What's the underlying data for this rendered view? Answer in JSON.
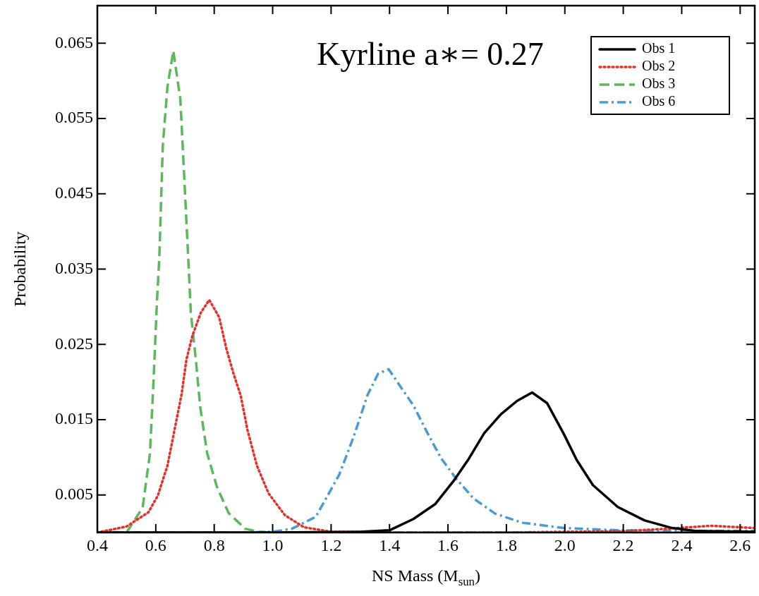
{
  "chart_data": {
    "type": "line",
    "title": "Kyrline a∗= 0.27",
    "xlabel": "NS Mass (M$_{sun}$)",
    "ylabel": "Probability",
    "xlim": [
      0.4,
      2.65
    ],
    "ylim": [
      0,
      0.07
    ],
    "xticks": [
      0.4,
      0.6,
      0.8,
      {
        "value": 1,
        "label": "1.0"
      },
      1.2,
      1.4,
      1.6,
      1.8,
      {
        "value": 2,
        "label": "2.0"
      },
      2.2,
      2.4,
      2.6
    ],
    "yticks": [
      0.005,
      0.015,
      0.025,
      0.035,
      0.045,
      0.055,
      0.065
    ],
    "grid": false,
    "legend": "top right",
    "marker": "none",
    "series": [
      {
        "name": "Obs 1",
        "color": "#000000",
        "line_style": "solid",
        "x": [
          0.4,
          1.0,
          1.3,
          1.4,
          1.482,
          1.557,
          1.622,
          1.668,
          1.724,
          1.781,
          1.837,
          1.888,
          1.939,
          1.995,
          2.041,
          2.096,
          2.181,
          2.273,
          2.367,
          2.45,
          2.65
        ],
        "values": [
          0,
          0,
          0.0001,
          0.0003,
          0.0018,
          0.0038,
          0.007,
          0.0096,
          0.0132,
          0.0157,
          0.0175,
          0.0186,
          0.0172,
          0.0132,
          0.0096,
          0.0063,
          0.0034,
          0.0016,
          0.0006,
          0.0002,
          0.0001
        ]
      },
      {
        "name": "Obs 2",
        "color": "#e8302a",
        "line_style": "dotted",
        "x": [
          0.4,
          0.5,
          0.575,
          0.607,
          0.64,
          0.664,
          0.688,
          0.705,
          0.725,
          0.754,
          0.783,
          0.817,
          0.841,
          0.866,
          0.89,
          0.914,
          0.946,
          0.986,
          1.042,
          1.107,
          1.2,
          1.4,
          1.8,
          2.2,
          2.35,
          2.5,
          2.65
        ],
        "values": [
          0,
          0.0008,
          0.0027,
          0.0049,
          0.0089,
          0.0136,
          0.0183,
          0.023,
          0.0261,
          0.0292,
          0.0309,
          0.0286,
          0.0245,
          0.0211,
          0.0183,
          0.0136,
          0.0089,
          0.0052,
          0.0023,
          0.0007,
          0.0001,
          0,
          0,
          0.0002,
          0.0005,
          0.0009,
          0.0006
        ]
      },
      {
        "name": "Obs 3",
        "color": "#5cb85c",
        "line_style": "dashed",
        "x": [
          0.4,
          0.5,
          0.555,
          0.58,
          0.592,
          0.604,
          0.612,
          0.624,
          0.64,
          0.66,
          0.684,
          0.696,
          0.708,
          0.72,
          0.737,
          0.752,
          0.776,
          0.809,
          0.849,
          0.906,
          0.95,
          1.0,
          2.65
        ],
        "values": [
          0,
          0,
          0.0033,
          0.0105,
          0.0199,
          0.0307,
          0.0364,
          0.0514,
          0.0592,
          0.064,
          0.0576,
          0.0483,
          0.0389,
          0.0292,
          0.023,
          0.0167,
          0.0105,
          0.0061,
          0.0026,
          0.0005,
          0.0001,
          0,
          0
        ]
      },
      {
        "name": "Obs 6",
        "color": "#4a9ad4",
        "line_style": "dashdot",
        "x": [
          0.4,
          0.9,
          1.0,
          1.066,
          1.148,
          1.228,
          1.277,
          1.325,
          1.361,
          1.397,
          1.483,
          1.53,
          1.576,
          1.627,
          1.688,
          1.762,
          1.855,
          1.995,
          2.18,
          2.4,
          2.65
        ],
        "values": [
          0,
          0,
          0.0001,
          0.0005,
          0.0021,
          0.0077,
          0.0127,
          0.0183,
          0.0211,
          0.0217,
          0.0168,
          0.0132,
          0.0099,
          0.0072,
          0.0045,
          0.0025,
          0.0013,
          0.0006,
          0.0003,
          0.0002,
          0.0002
        ]
      }
    ]
  }
}
